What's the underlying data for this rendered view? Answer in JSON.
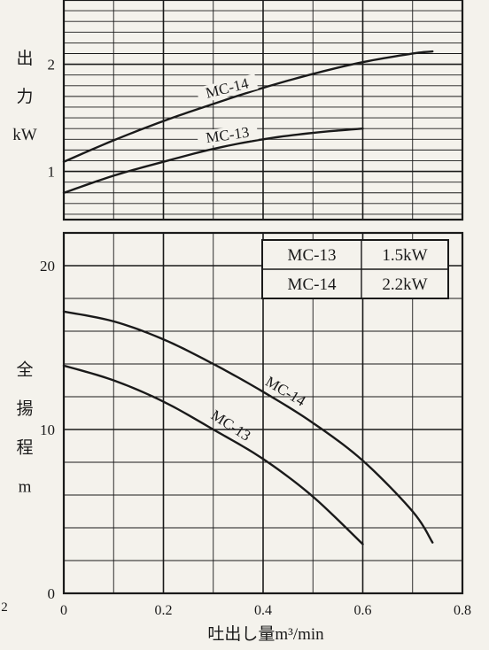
{
  "chart_data": [
    {
      "type": "line",
      "panel": "power",
      "ylabel_chars": [
        "出",
        "力",
        "kW"
      ],
      "x_range": [
        0,
        0.8
      ],
      "ylim": [
        0.55,
        2.6
      ],
      "y_ticks": [
        {
          "value": 1,
          "label": "1"
        },
        {
          "value": 2,
          "label": "2"
        }
      ],
      "grid": true,
      "series": [
        {
          "name": "MC-14",
          "label_at": 0.33,
          "label_angle": -14,
          "points": [
            [
              0,
              1.09
            ],
            [
              0.1,
              1.29
            ],
            [
              0.2,
              1.47
            ],
            [
              0.3,
              1.63
            ],
            [
              0.4,
              1.78
            ],
            [
              0.5,
              1.91
            ],
            [
              0.6,
              2.02
            ],
            [
              0.7,
              2.1
            ],
            [
              0.74,
              2.12
            ]
          ]
        },
        {
          "name": "MC-13",
          "label_at": 0.33,
          "label_angle": -8,
          "points": [
            [
              0,
              0.8
            ],
            [
              0.1,
              0.96
            ],
            [
              0.2,
              1.09
            ],
            [
              0.3,
              1.21
            ],
            [
              0.4,
              1.3
            ],
            [
              0.5,
              1.36
            ],
            [
              0.6,
              1.4
            ]
          ]
        }
      ]
    },
    {
      "type": "line",
      "panel": "head",
      "ylabel_chars": [
        "全",
        "揚",
        "程",
        "m"
      ],
      "xlabel": "吐出し量m³/min",
      "x_ticks": [
        "0",
        "0.2",
        "0.4",
        "0.6",
        "0.8"
      ],
      "x_range": [
        0,
        0.8
      ],
      "ylim": [
        0,
        22
      ],
      "y_ticks": [
        {
          "value": 0,
          "label": "0"
        },
        {
          "value": 10,
          "label": "10"
        },
        {
          "value": 20,
          "label": "20"
        }
      ],
      "grid": true,
      "stray_tick_label": "2",
      "series": [
        {
          "name": "MC-14",
          "label_at": 0.44,
          "label_angle": 31,
          "points": [
            [
              0,
              17.2
            ],
            [
              0.1,
              16.6
            ],
            [
              0.2,
              15.5
            ],
            [
              0.3,
              14.0
            ],
            [
              0.4,
              12.3
            ],
            [
              0.5,
              10.4
            ],
            [
              0.6,
              8.1
            ],
            [
              0.7,
              5.0
            ],
            [
              0.74,
              3.1
            ]
          ]
        },
        {
          "name": "MC-13",
          "label_at": 0.33,
          "label_angle": 33,
          "points": [
            [
              0,
              13.9
            ],
            [
              0.1,
              13.0
            ],
            [
              0.2,
              11.7
            ],
            [
              0.3,
              10.0
            ],
            [
              0.4,
              8.2
            ],
            [
              0.5,
              5.9
            ],
            [
              0.6,
              3.0
            ]
          ]
        }
      ],
      "legend_table": {
        "position": "top-right",
        "rows": [
          {
            "model": "MC-13",
            "power": "1.5kW"
          },
          {
            "model": "MC-14",
            "power": "2.2kW"
          }
        ]
      }
    }
  ]
}
